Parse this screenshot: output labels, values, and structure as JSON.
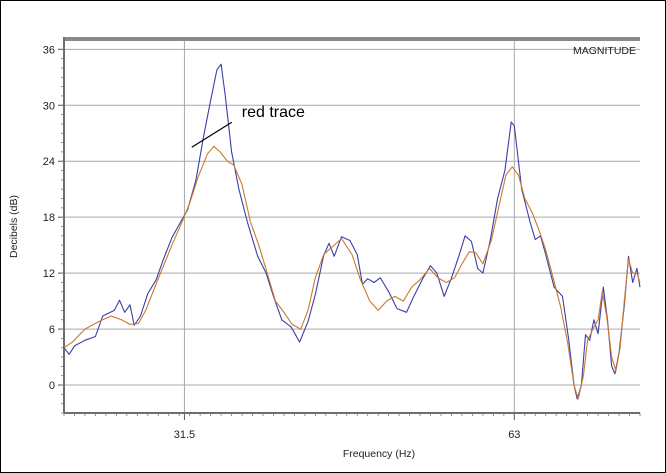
{
  "chart_data": {
    "type": "line",
    "title": "",
    "panel_label": "MAGNITUDE",
    "xlabel": "Frequency (Hz)",
    "ylabel": "Decibels (dB)",
    "xlim": [
      20,
      75
    ],
    "ylim": [
      -3,
      37
    ],
    "x_ticks": [
      31.5,
      63
    ],
    "y_ticks": [
      0,
      6,
      12,
      18,
      24,
      30,
      36
    ],
    "grid": true,
    "annotation": {
      "text": "red trace",
      "x": 32.2,
      "y": 25.5
    },
    "series": [
      {
        "color": "#3a3fa8",
        "points": [
          [
            20.0,
            4.0
          ],
          [
            20.5,
            3.3
          ],
          [
            21.0,
            4.2
          ],
          [
            22.0,
            4.8
          ],
          [
            23.0,
            5.2
          ],
          [
            23.7,
            7.4
          ],
          [
            24.8,
            8.0
          ],
          [
            25.3,
            9.1
          ],
          [
            25.8,
            7.8
          ],
          [
            26.3,
            8.6
          ],
          [
            26.7,
            6.4
          ],
          [
            27.3,
            7.4
          ],
          [
            28.0,
            9.8
          ],
          [
            28.8,
            11.3
          ],
          [
            29.5,
            13.5
          ],
          [
            30.3,
            15.8
          ],
          [
            31.0,
            17.2
          ],
          [
            31.8,
            18.8
          ],
          [
            32.6,
            22.0
          ],
          [
            33.3,
            26.5
          ],
          [
            34.0,
            30.5
          ],
          [
            34.6,
            33.8
          ],
          [
            35.0,
            34.4
          ],
          [
            35.4,
            31.0
          ],
          [
            36.0,
            25.0
          ],
          [
            36.7,
            21.0
          ],
          [
            37.5,
            17.5
          ],
          [
            38.5,
            13.8
          ],
          [
            39.3,
            12.0
          ],
          [
            40.0,
            9.5
          ],
          [
            40.8,
            7.0
          ],
          [
            41.7,
            6.2
          ],
          [
            42.5,
            4.6
          ],
          [
            43.3,
            6.8
          ],
          [
            44.0,
            9.7
          ],
          [
            44.8,
            13.9
          ],
          [
            45.3,
            15.2
          ],
          [
            45.8,
            13.8
          ],
          [
            46.5,
            15.9
          ],
          [
            47.3,
            15.5
          ],
          [
            48.0,
            14.0
          ],
          [
            48.5,
            10.8
          ],
          [
            49.0,
            11.4
          ],
          [
            49.6,
            11.0
          ],
          [
            50.2,
            11.5
          ],
          [
            51.0,
            10.0
          ],
          [
            51.8,
            8.2
          ],
          [
            52.7,
            7.8
          ],
          [
            53.4,
            9.5
          ],
          [
            54.3,
            11.5
          ],
          [
            55.0,
            12.8
          ],
          [
            55.6,
            12.0
          ],
          [
            56.3,
            9.5
          ],
          [
            57.0,
            11.5
          ],
          [
            57.7,
            13.8
          ],
          [
            58.3,
            16.0
          ],
          [
            58.9,
            15.4
          ],
          [
            59.5,
            12.5
          ],
          [
            60.0,
            12.0
          ],
          [
            60.7,
            15.5
          ],
          [
            61.4,
            20.0
          ],
          [
            62.1,
            23.0
          ],
          [
            62.7,
            28.2
          ],
          [
            63.0,
            27.8
          ],
          [
            63.7,
            21.0
          ],
          [
            64.5,
            17.5
          ],
          [
            65.0,
            15.6
          ],
          [
            65.5,
            16.0
          ],
          [
            66.0,
            14.0
          ],
          [
            66.8,
            10.5
          ],
          [
            67.6,
            9.5
          ],
          [
            68.2,
            4.8
          ],
          [
            68.7,
            0.0
          ],
          [
            69.0,
            -1.5
          ],
          [
            69.4,
            0.0
          ],
          [
            69.8,
            5.4
          ],
          [
            70.2,
            4.8
          ],
          [
            70.6,
            7.0
          ],
          [
            71.0,
            5.5
          ],
          [
            71.5,
            10.5
          ],
          [
            71.9,
            7.0
          ],
          [
            72.3,
            2.0
          ],
          [
            72.6,
            1.2
          ],
          [
            73.0,
            3.5
          ],
          [
            73.5,
            8.5
          ],
          [
            73.9,
            13.8
          ],
          [
            74.3,
            11.0
          ],
          [
            74.7,
            12.5
          ],
          [
            75.0,
            10.5
          ]
        ]
      },
      {
        "color": "#c87a30",
        "points": [
          [
            20.0,
            4.0
          ],
          [
            20.8,
            4.6
          ],
          [
            22.0,
            6.0
          ],
          [
            23.3,
            6.8
          ],
          [
            24.5,
            7.4
          ],
          [
            25.5,
            7.0
          ],
          [
            26.3,
            6.5
          ],
          [
            27.1,
            6.6
          ],
          [
            27.8,
            8.0
          ],
          [
            28.6,
            10.3
          ],
          [
            29.4,
            12.5
          ],
          [
            30.3,
            15.0
          ],
          [
            31.2,
            17.3
          ],
          [
            32.0,
            19.5
          ],
          [
            32.8,
            22.3
          ],
          [
            33.7,
            24.8
          ],
          [
            34.3,
            25.6
          ],
          [
            34.9,
            25.0
          ],
          [
            35.6,
            24.0
          ],
          [
            36.2,
            23.6
          ],
          [
            37.0,
            21.5
          ],
          [
            37.8,
            17.5
          ],
          [
            38.6,
            15.0
          ],
          [
            39.4,
            12.0
          ],
          [
            40.2,
            9.0
          ],
          [
            41.0,
            7.8
          ],
          [
            41.8,
            6.5
          ],
          [
            42.6,
            6.0
          ],
          [
            43.3,
            8.0
          ],
          [
            44.0,
            11.5
          ],
          [
            44.8,
            14.0
          ],
          [
            45.6,
            14.8
          ],
          [
            46.5,
            15.7
          ],
          [
            47.5,
            14.0
          ],
          [
            48.3,
            11.3
          ],
          [
            49.2,
            9.0
          ],
          [
            50.0,
            8.0
          ],
          [
            50.8,
            9.0
          ],
          [
            51.6,
            9.5
          ],
          [
            52.4,
            9.0
          ],
          [
            53.2,
            10.5
          ],
          [
            54.0,
            11.3
          ],
          [
            54.9,
            12.5
          ],
          [
            55.7,
            11.5
          ],
          [
            56.5,
            11.0
          ],
          [
            57.3,
            11.5
          ],
          [
            58.0,
            13.0
          ],
          [
            58.7,
            14.3
          ],
          [
            59.3,
            14.2
          ],
          [
            60.0,
            13.0
          ],
          [
            60.8,
            15.5
          ],
          [
            61.5,
            19.0
          ],
          [
            62.2,
            22.5
          ],
          [
            62.8,
            23.4
          ],
          [
            63.4,
            22.5
          ],
          [
            64.0,
            20.0
          ],
          [
            64.7,
            18.5
          ],
          [
            65.3,
            16.8
          ],
          [
            66.0,
            14.5
          ],
          [
            66.7,
            11.5
          ],
          [
            67.4,
            8.5
          ],
          [
            68.1,
            4.5
          ],
          [
            68.7,
            0.0
          ],
          [
            69.1,
            -1.5
          ],
          [
            69.6,
            1.0
          ],
          [
            70.0,
            4.8
          ],
          [
            70.5,
            6.0
          ],
          [
            71.0,
            7.0
          ],
          [
            71.4,
            10.0
          ],
          [
            71.8,
            7.5
          ],
          [
            72.3,
            3.0
          ],
          [
            72.7,
            1.5
          ],
          [
            73.1,
            4.0
          ],
          [
            73.5,
            9.0
          ],
          [
            73.9,
            13.5
          ],
          [
            74.3,
            12.0
          ],
          [
            74.7,
            12.0
          ],
          [
            75.0,
            11.0
          ]
        ]
      }
    ]
  }
}
